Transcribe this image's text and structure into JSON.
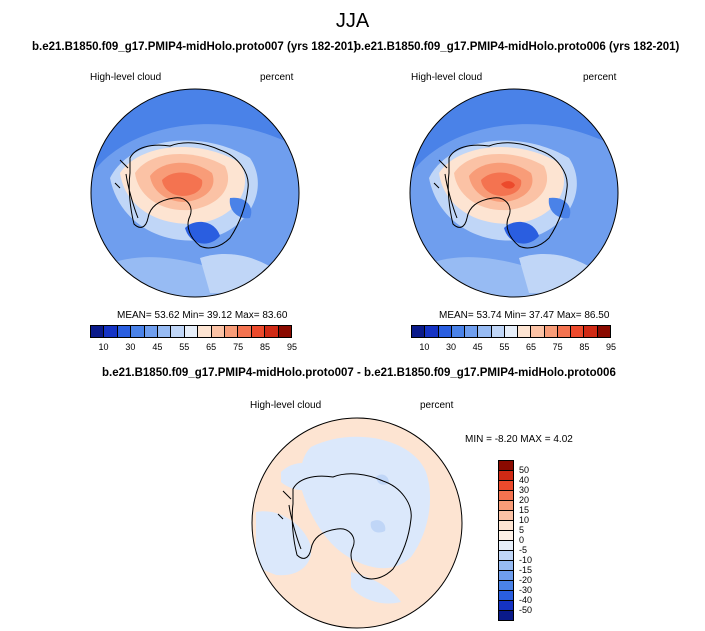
{
  "season": "JJA",
  "panel1": {
    "title": "b.e21.B1850.f09_g17.PMIP4-midHolo.proto007 (yrs 182-201)",
    "variable": "High-level cloud",
    "units": "percent",
    "stats": "MEAN=  53.62  Min=  39.12  Max=  83.60"
  },
  "panel2": {
    "title": "b.e21.B1850.f09_g17.PMIP4-midHolo.proto006 (yrs 182-201)",
    "variable": "High-level cloud",
    "units": "percent",
    "stats": "MEAN=  53.74  Min=  37.47  Max=  86.50"
  },
  "diff": {
    "title": "b.e21.B1850.f09_g17.PMIP4-midHolo.proto007 - b.e21.B1850.f09_g17.PMIP4-midHolo.proto006",
    "variable": "High-level cloud",
    "units": "percent",
    "stats": "MIN =  -8.20 MAX =   4.02"
  },
  "colorbar": {
    "labels": [
      "10",
      "30",
      "45",
      "55",
      "65",
      "75",
      "85",
      "95"
    ],
    "colors": [
      "#0a1a8a",
      "#1533c4",
      "#2a5ee0",
      "#4a82e8",
      "#6f9eee",
      "#97bbf3",
      "#c0d6f7",
      "#e6eef9",
      "#fde4d2",
      "#fbc2a5",
      "#f89c78",
      "#f47350",
      "#ec4a2c",
      "#d02a15",
      "#8a0a00"
    ]
  },
  "diff_colorbar": {
    "labels": [
      "50",
      "40",
      "30",
      "20",
      "15",
      "10",
      "5",
      "0",
      "-5",
      "-10",
      "-15",
      "-20",
      "-30",
      "-40",
      "-50"
    ],
    "colors": [
      "#8a0a00",
      "#d02a15",
      "#ec4a2c",
      "#f47350",
      "#f89c78",
      "#fbc2a5",
      "#fde4d2",
      "#fdf0e6",
      "#e6eef9",
      "#c0d6f7",
      "#97bbf3",
      "#6f9eee",
      "#4a82e8",
      "#2a5ee0",
      "#1533c4",
      "#0a1a8a"
    ]
  }
}
